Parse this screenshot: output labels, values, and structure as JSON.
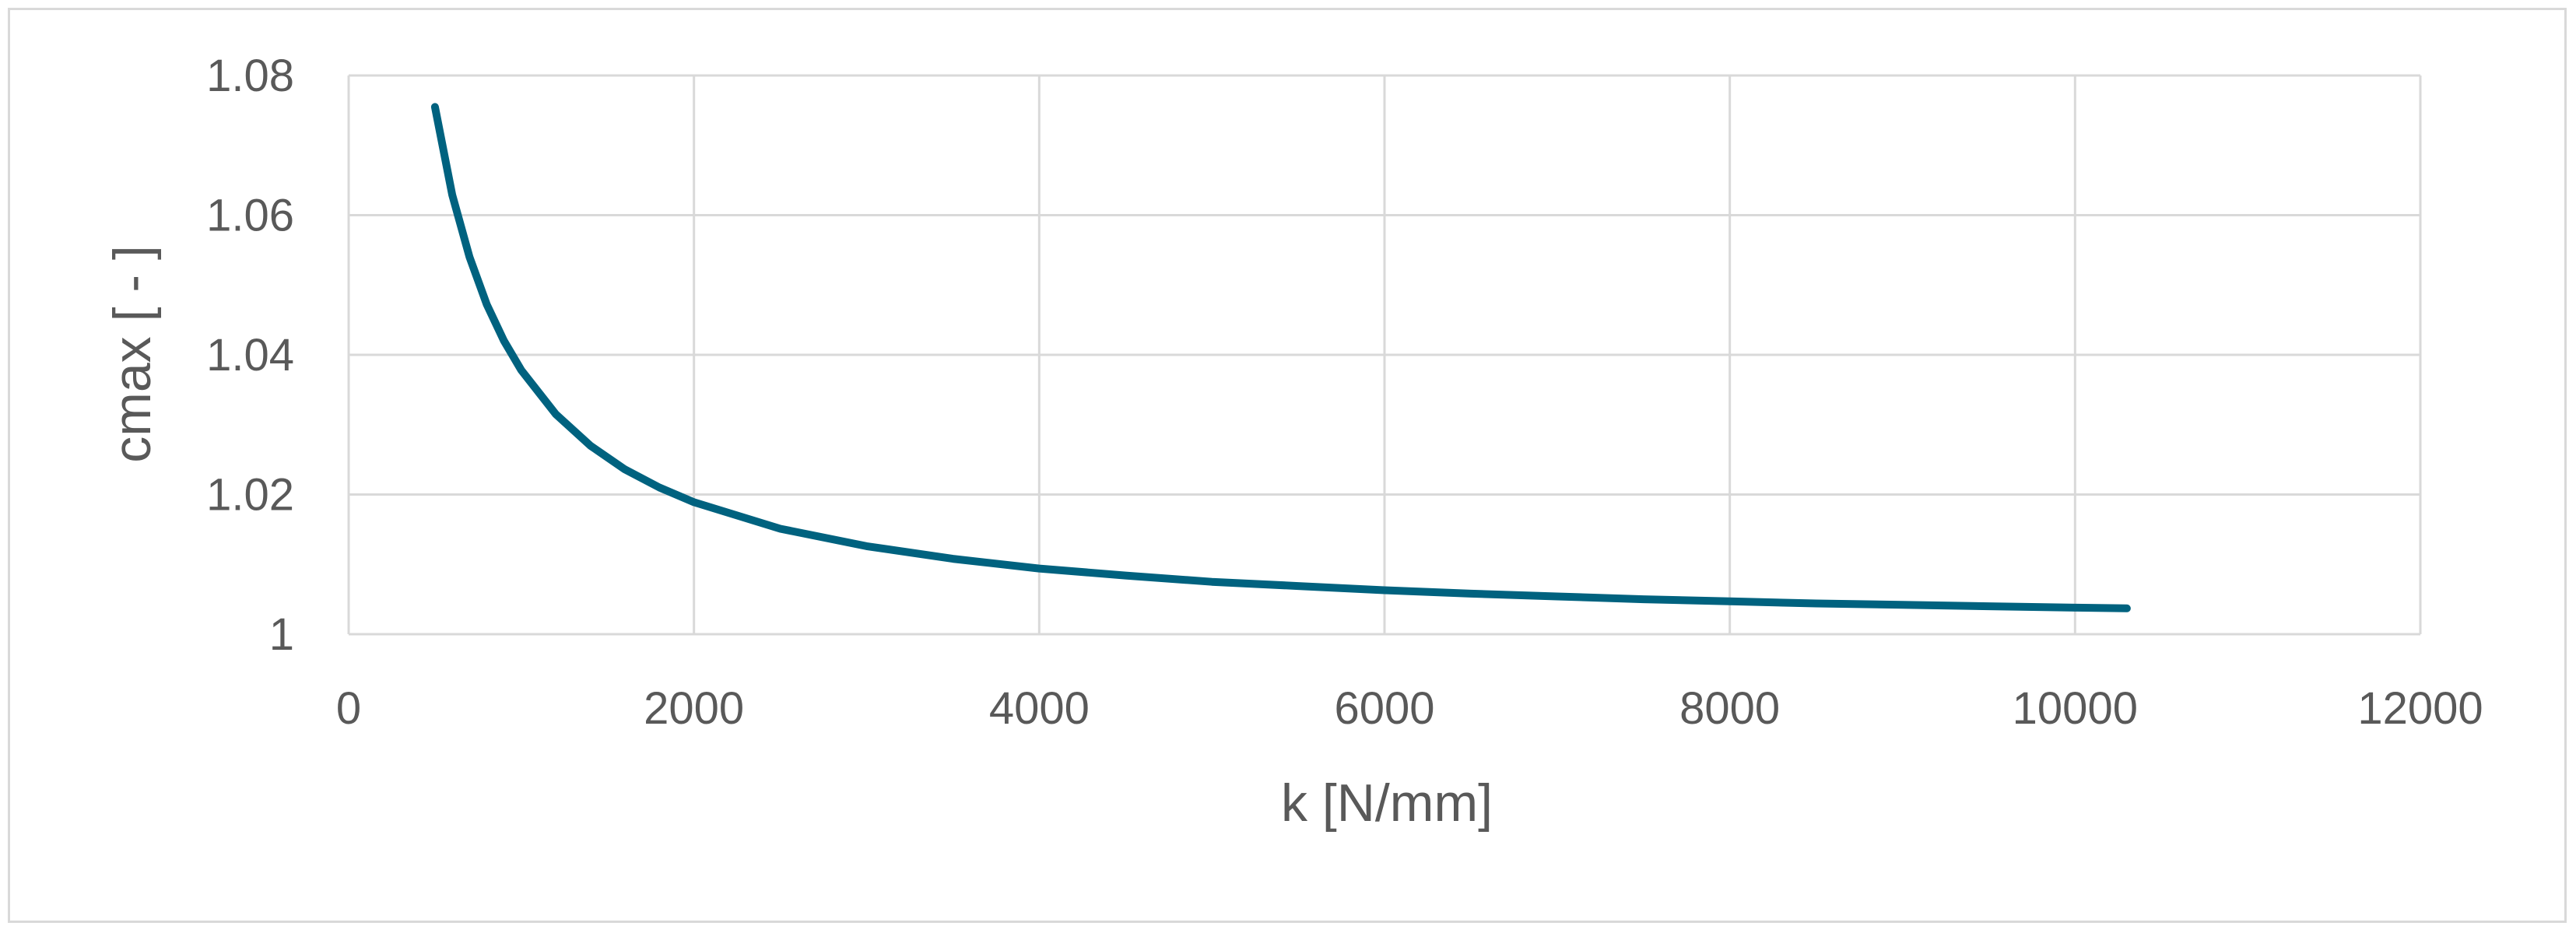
{
  "chart_data": {
    "type": "line",
    "title": "",
    "xlabel": "k [N/mm]",
    "ylabel": "cmax [ - ]",
    "xlim": [
      0,
      12000
    ],
    "ylim": [
      1,
      1.08
    ],
    "x_ticks": [
      0,
      2000,
      4000,
      6000,
      8000,
      10000,
      12000
    ],
    "y_ticks": [
      1,
      1.02,
      1.04,
      1.06,
      1.08
    ],
    "x_tick_labels": [
      "0",
      "2000",
      "4000",
      "6000",
      "8000",
      "10000",
      "12000"
    ],
    "y_tick_labels": [
      "1",
      "1.02",
      "1.04",
      "1.06",
      "1.08"
    ],
    "grid": true,
    "legend": "none",
    "series_color": "#00627f",
    "grid_color": "#d9d9d9",
    "series": [
      {
        "x": [
          500,
          600,
          700,
          800,
          900,
          1000,
          1200,
          1400,
          1600,
          1800,
          2000,
          2500,
          3000,
          3500,
          4000,
          4500,
          5000,
          5500,
          6000,
          6500,
          7000,
          7500,
          8000,
          8500,
          9000,
          9500,
          10000,
          10300
        ],
        "values": [
          1.0755,
          1.0629,
          1.054,
          1.0472,
          1.042,
          1.0378,
          1.0315,
          1.027,
          1.0236,
          1.021,
          1.0189,
          1.0151,
          1.0126,
          1.0108,
          1.0094,
          1.0084,
          1.0075,
          1.0069,
          1.0063,
          1.0058,
          1.0054,
          1.005,
          1.0047,
          1.0044,
          1.0042,
          1.004,
          1.0038,
          1.0037
        ]
      }
    ]
  }
}
